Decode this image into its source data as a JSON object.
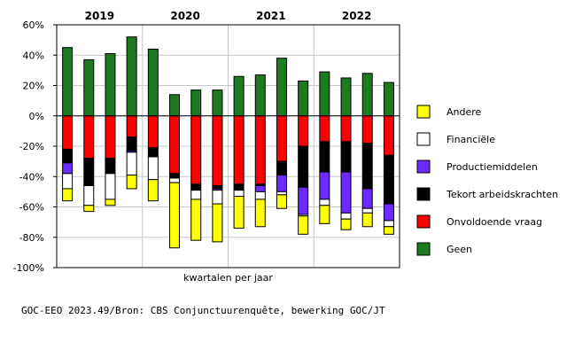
{
  "chart_data": {
    "type": "bar",
    "stacked": true,
    "title": "",
    "xlabel": "kwartalen per jaar",
    "ylabel": "",
    "ylim": [
      -100,
      60
    ],
    "yticks": [
      60,
      40,
      20,
      0,
      -20,
      -40,
      -60,
      -80,
      -100
    ],
    "yticks_labels": [
      "60%",
      "40%",
      "20%",
      "0%",
      "-20%",
      "-40%",
      "-60%",
      "-80%",
      "-100%"
    ],
    "grid": true,
    "legend_position": "right",
    "years": [
      "2019",
      "2020",
      "2021",
      "2022"
    ],
    "categories": [
      "2019-Q1",
      "2019-Q2",
      "2019-Q3",
      "2019-Q4",
      "2020-Q1",
      "2020-Q2",
      "2020-Q3",
      "2020-Q4",
      "2021-Q1",
      "2021-Q2",
      "2021-Q3",
      "2021-Q4",
      "2022-Q1",
      "2022-Q2",
      "2022-Q3",
      "2022-Q4"
    ],
    "positive_series": [
      {
        "name": "Geen",
        "color": "#1e7a1e",
        "values": [
          45,
          37,
          41,
          52,
          44,
          14,
          17,
          17,
          26,
          27,
          38,
          23,
          29,
          25,
          28,
          22
        ]
      }
    ],
    "negative_series_order": [
      "Onvoldoende vraag",
      "Tekort arbeidskrachten",
      "Productiemiddelen",
      "Financiële",
      "Andere"
    ],
    "negative_series": [
      {
        "name": "Onvoldoende vraag",
        "color": "#ff0000",
        "values": [
          -22,
          -28,
          -28,
          -14,
          -21,
          -38,
          -45,
          -46,
          -45,
          -45,
          -30,
          -20,
          -17,
          -17,
          -18,
          -26
        ]
      },
      {
        "name": "Tekort arbeidskrachten",
        "color": "#000000",
        "values": [
          -9,
          -18,
          -10,
          -9,
          -6,
          -3,
          -4,
          -2,
          -4,
          -1,
          -9,
          -27,
          -20,
          -20,
          -30,
          -32
        ]
      },
      {
        "name": "Productiemiddelen",
        "color": "#6a2bff",
        "values": [
          -7,
          0,
          0,
          -1,
          0,
          0,
          0,
          -1,
          0,
          -4,
          -11,
          -18,
          -18,
          -27,
          -13,
          -11
        ]
      },
      {
        "name": "Financiële",
        "color": "#ffffff",
        "values": [
          -10,
          -13,
          -17,
          -15,
          -15,
          -3,
          -6,
          -9,
          -4,
          -5,
          -2,
          -1,
          -4,
          -4,
          -3,
          -4
        ]
      },
      {
        "name": "Andere",
        "color": "#ffff00",
        "values": [
          -8,
          -4,
          -4,
          -9,
          -14,
          -43,
          -27,
          -25,
          -21,
          -18,
          -9,
          -12,
          -12,
          -7,
          -9,
          -5
        ]
      }
    ],
    "legend": [
      {
        "name": "Andere",
        "color": "#ffff00"
      },
      {
        "name": "Financiële",
        "color": "#ffffff"
      },
      {
        "name": "Productiemiddelen",
        "color": "#6a2bff"
      },
      {
        "name": "Tekort arbeidskrachten",
        "color": "#000000"
      },
      {
        "name": "Onvoldoende vraag",
        "color": "#ff0000"
      },
      {
        "name": "Geen",
        "color": "#1e7a1e"
      }
    ]
  },
  "source_note": "GOC-EEO 2023.49/Bron: CBS Conjunctuurenquête, bewerking GOC/JT"
}
